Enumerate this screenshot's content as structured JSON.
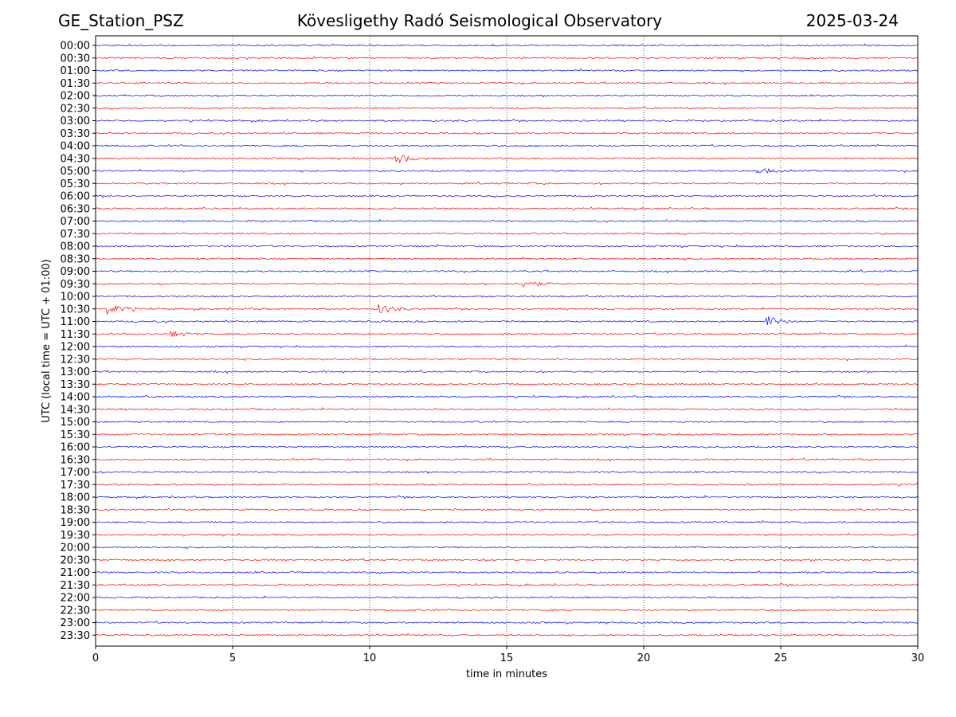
{
  "header": {
    "station": "GE_Station_PSZ",
    "title": "Kövesligethy Radó Seismological Observatory",
    "date": "2025-03-24"
  },
  "chart_data": {
    "type": "line",
    "title": "Kövesligethy Radó Seismological Observatory",
    "xlabel": "time in minutes",
    "ylabel": "UTC (local time = UTC + 01:00)",
    "xlim": [
      0,
      30
    ],
    "xticks": [
      "0",
      "5",
      "10",
      "15",
      "20",
      "25",
      "30"
    ],
    "grid": "vertical dotted at 5, 10, 15, 20, 25",
    "rows": [
      "00:00",
      "00:30",
      "01:00",
      "01:30",
      "02:00",
      "02:30",
      "03:00",
      "03:30",
      "04:00",
      "04:30",
      "05:00",
      "05:30",
      "06:00",
      "06:30",
      "07:00",
      "07:30",
      "08:00",
      "08:30",
      "09:00",
      "09:30",
      "10:00",
      "10:30",
      "11:00",
      "11:30",
      "12:00",
      "12:30",
      "13:00",
      "13:30",
      "14:00",
      "14:30",
      "15:00",
      "15:30",
      "16:00",
      "16:30",
      "17:00",
      "17:30",
      "18:00",
      "18:30",
      "19:00",
      "19:30",
      "20:00",
      "20:30",
      "21:00",
      "21:30",
      "22:00",
      "22:30",
      "23:00",
      "23:30"
    ],
    "colors": [
      "#0000ff",
      "#ff0000"
    ],
    "events": [
      {
        "row": "04:30",
        "minute": 11.0,
        "amplitude": 0.6
      },
      {
        "row": "05:00",
        "minute": 24.2,
        "amplitude": 0.35
      },
      {
        "row": "09:30",
        "minute": 15.7,
        "amplitude": 0.45
      },
      {
        "row": "10:30",
        "minute": 0.5,
        "amplitude": 0.6
      },
      {
        "row": "10:30",
        "minute": 10.4,
        "amplitude": 0.6
      },
      {
        "row": "11:00",
        "minute": 24.5,
        "amplitude": 0.7
      },
      {
        "row": "11:30",
        "minute": 2.8,
        "amplitude": 0.35
      }
    ]
  }
}
